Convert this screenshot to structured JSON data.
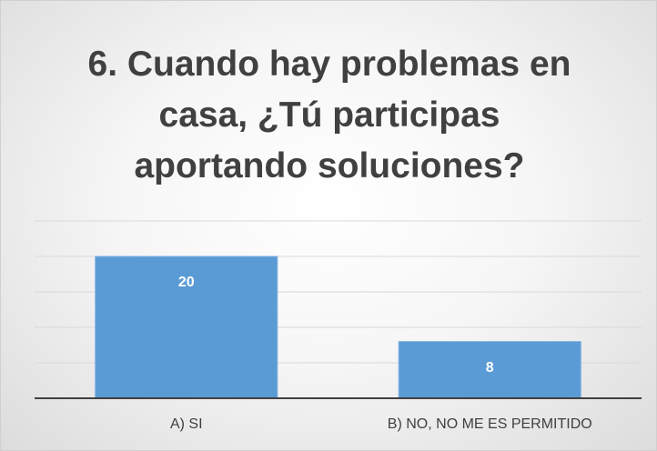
{
  "chart_data": {
    "type": "bar",
    "title": "6. Cuando hay problemas en casa, ¿Tú participas aportando soluciones?",
    "categories": [
      "A) SI",
      "B) NO, NO ME ES PERMITIDO"
    ],
    "values": [
      20,
      8
    ],
    "color": "#5b9bd5",
    "ylim": [
      0,
      25
    ],
    "yticks": [
      0,
      5,
      10,
      15,
      20,
      25
    ],
    "grid": true
  }
}
